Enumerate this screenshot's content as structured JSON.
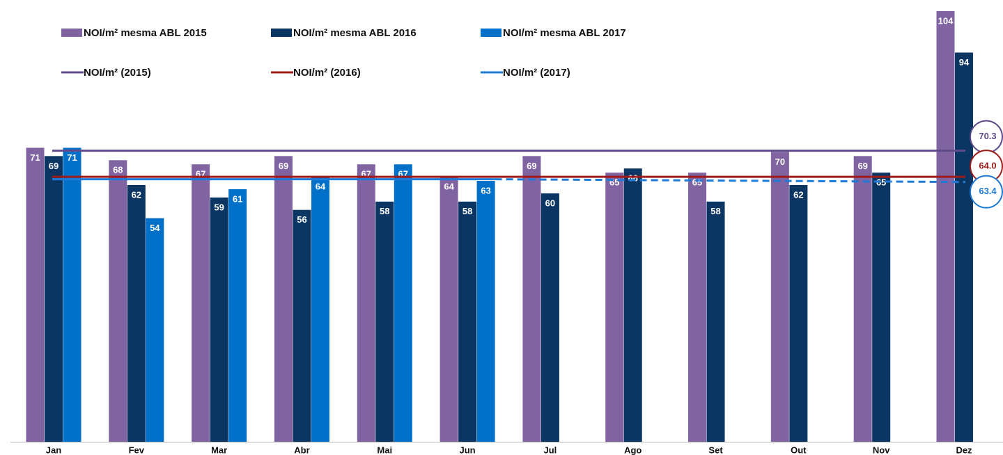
{
  "chart_data": {
    "type": "bar",
    "categories": [
      "Jan",
      "Fev",
      "Mar",
      "Abr",
      "Mai",
      "Jun",
      "Jul",
      "Ago",
      "Set",
      "Out",
      "Nov",
      "Dez"
    ],
    "series": [
      {
        "name": "NOI/m² mesma ABL 2015",
        "color": "#8064a2",
        "values": [
          71,
          68,
          67,
          69,
          67,
          64,
          69,
          65,
          65,
          70,
          69,
          104
        ]
      },
      {
        "name": "NOI/m² mesma ABL 2016",
        "color": "#0b3563",
        "values": [
          69,
          62,
          59,
          56,
          58,
          58,
          60,
          66,
          58,
          62,
          65,
          94
        ]
      },
      {
        "name": "NOI/m² mesma ABL 2017",
        "color": "#0070c8",
        "values": [
          71,
          54,
          61,
          64,
          67,
          63,
          null,
          null,
          null,
          null,
          null,
          null
        ]
      }
    ],
    "lines": [
      {
        "name": "NOI/m² (2015)",
        "color": "#5f4b8b",
        "value": 70.3,
        "value_label": "70.3"
      },
      {
        "name": "NOI/m² (2016)",
        "color": "#9c1b1b",
        "value": 64,
        "value_label": "64.0"
      },
      {
        "name": "NOI/m² (2017)",
        "color": "#1f7ad6",
        "value": 63.4,
        "value_label": "63.4"
      }
    ]
  }
}
